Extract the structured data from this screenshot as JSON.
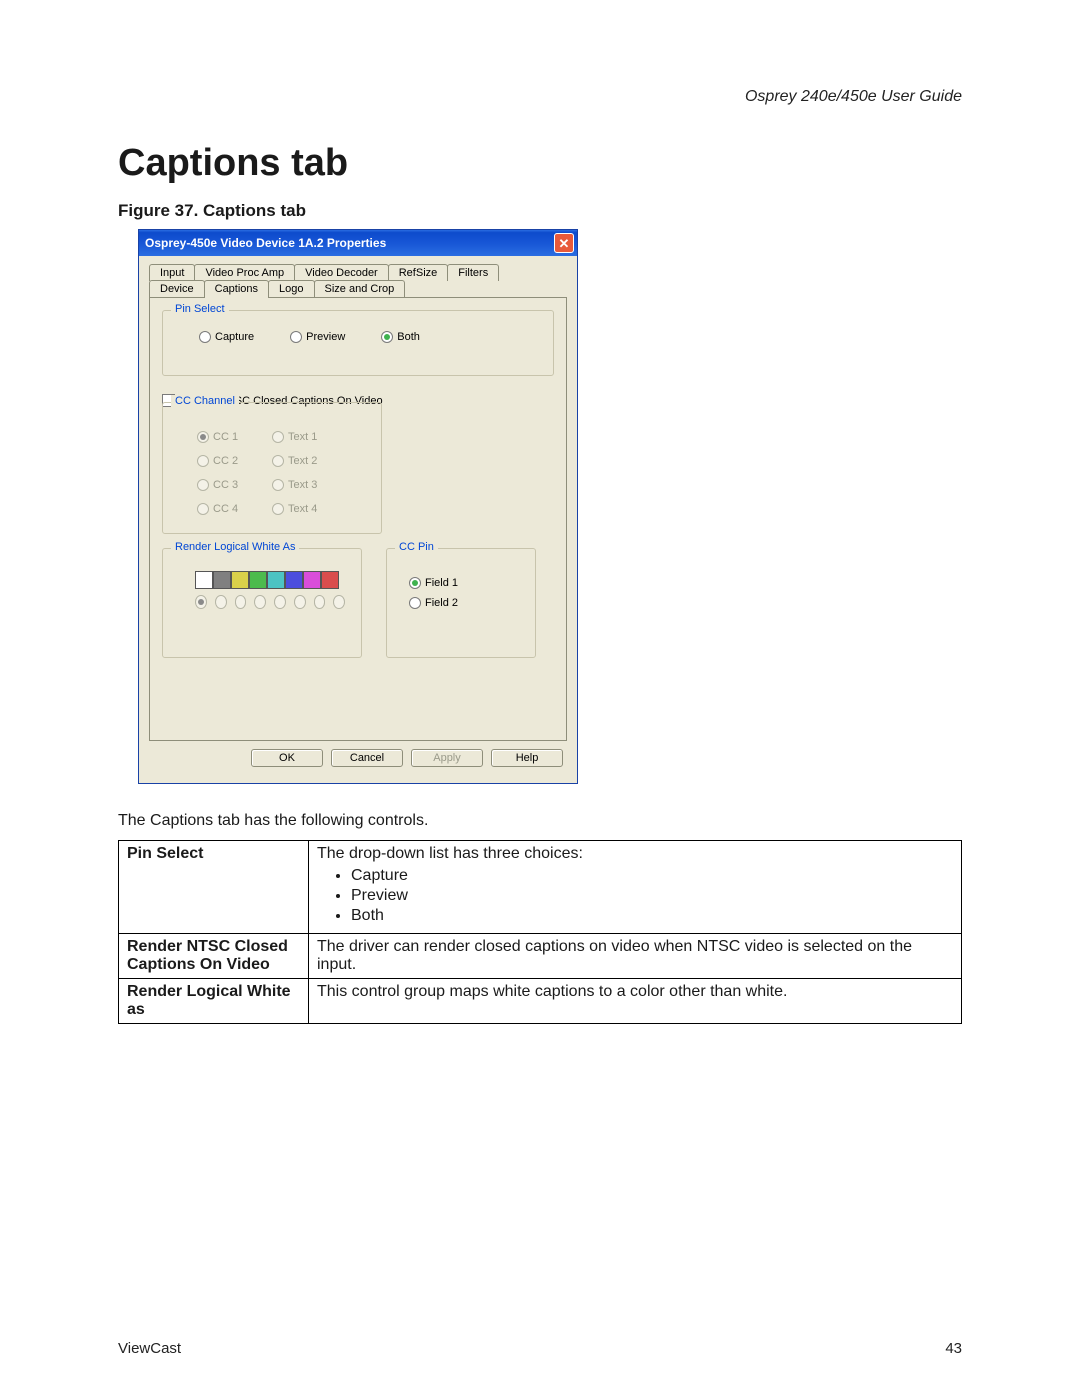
{
  "doc": {
    "header": "Osprey 240e/450e User Guide",
    "h1": "Captions tab",
    "figureCaption": "Figure 37. Captions tab",
    "footerLeft": "ViewCast",
    "footerRight": "43"
  },
  "dialog": {
    "title": "Osprey-450e Video Device 1A.2 Properties",
    "closeGlyph": "✕",
    "tabsRow1": [
      "Input",
      "Video Proc Amp",
      "Video Decoder",
      "RefSize",
      "Filters"
    ],
    "tabsRow2": [
      "Device",
      "Captions",
      "Logo",
      "Size and Crop"
    ],
    "activeTab": "Captions",
    "pinSelect": {
      "legend": "Pin Select",
      "options": [
        "Capture",
        "Preview",
        "Both"
      ],
      "selected": "Both"
    },
    "renderNtsc": {
      "checkboxLabel": "Render NTSC Closed Captions On Video",
      "checked": false
    },
    "ccChannel": {
      "legend": "CC Channel",
      "left": [
        "CC 1",
        "CC 2",
        "CC 3",
        "CC 4"
      ],
      "right": [
        "Text 1",
        "Text 2",
        "Text 3",
        "Text 4"
      ],
      "selected": "CC 1",
      "enabled": false
    },
    "renderWhite": {
      "legend": "Render Logical White As",
      "colors": [
        "#ffffff",
        "#808080",
        "#d9d04a",
        "#4dbb4d",
        "#4dc3c3",
        "#4d4ddd",
        "#d94dd9",
        "#d94d4d"
      ],
      "selectedIndex": 0,
      "enabled": false
    },
    "ccPin": {
      "legend": "CC Pin",
      "options": [
        "Field 1",
        "Field 2"
      ],
      "selected": "Field 1"
    },
    "buttons": {
      "ok": "OK",
      "cancel": "Cancel",
      "apply": "Apply",
      "help": "Help"
    }
  },
  "description": {
    "intro": "The Captions tab has the following controls.",
    "rows": [
      {
        "key": "Pin Select",
        "text": "The drop-down list has three choices:",
        "bullets": [
          "Capture",
          "Preview",
          "Both"
        ]
      },
      {
        "key": "Render NTSC Closed Captions On Video",
        "text": "The driver can render closed captions on video when NTSC video is selected on the input."
      },
      {
        "key": "Render Logical White as",
        "text": "This control group maps white captions to a color other than white."
      }
    ]
  }
}
